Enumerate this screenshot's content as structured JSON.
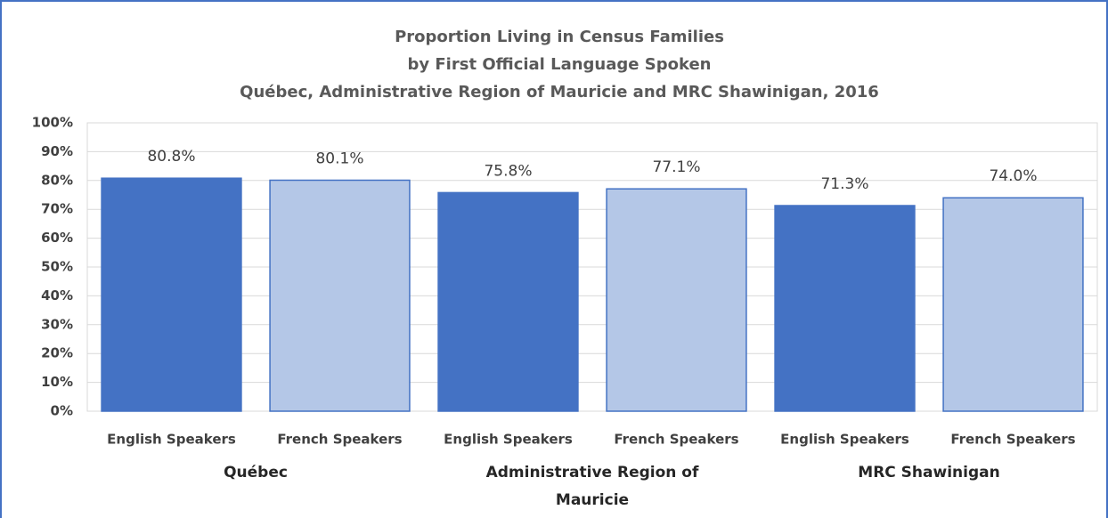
{
  "chart_data": {
    "type": "bar",
    "title": [
      "Proportion Living in Census Families",
      "by First Official Language Spoken",
      "Québec, Administrative Region of Mauricie and MRC Shawinigan, 2016"
    ],
    "categories": [
      "Québec",
      "Administrative Region of Mauricie",
      "MRC Shawinigan"
    ],
    "series": [
      {
        "name": "English Speakers",
        "color": "#4472c4",
        "values": [
          80.8,
          75.8,
          71.3
        ],
        "value_labels": [
          "80.8%",
          "75.8%",
          "71.3%"
        ]
      },
      {
        "name": "French Speakers",
        "color": "#b4c7e7",
        "values": [
          80.1,
          77.1,
          74.0
        ],
        "value_labels": [
          "80.1%",
          "77.1%",
          "74.0%"
        ]
      }
    ],
    "ylim": [
      0,
      100
    ],
    "yticks": [
      {
        "value": 0,
        "label": "0%"
      },
      {
        "value": 10,
        "label": "10%"
      },
      {
        "value": 20,
        "label": "20%"
      },
      {
        "value": 30,
        "label": "30%"
      },
      {
        "value": 40,
        "label": "40%"
      },
      {
        "value": 50,
        "label": "50%"
      },
      {
        "value": 60,
        "label": "60%"
      },
      {
        "value": 70,
        "label": "70%"
      },
      {
        "value": 80,
        "label": "80%"
      },
      {
        "value": 90,
        "label": "90%"
      },
      {
        "value": 100,
        "label": "100%"
      }
    ],
    "grid": true
  }
}
